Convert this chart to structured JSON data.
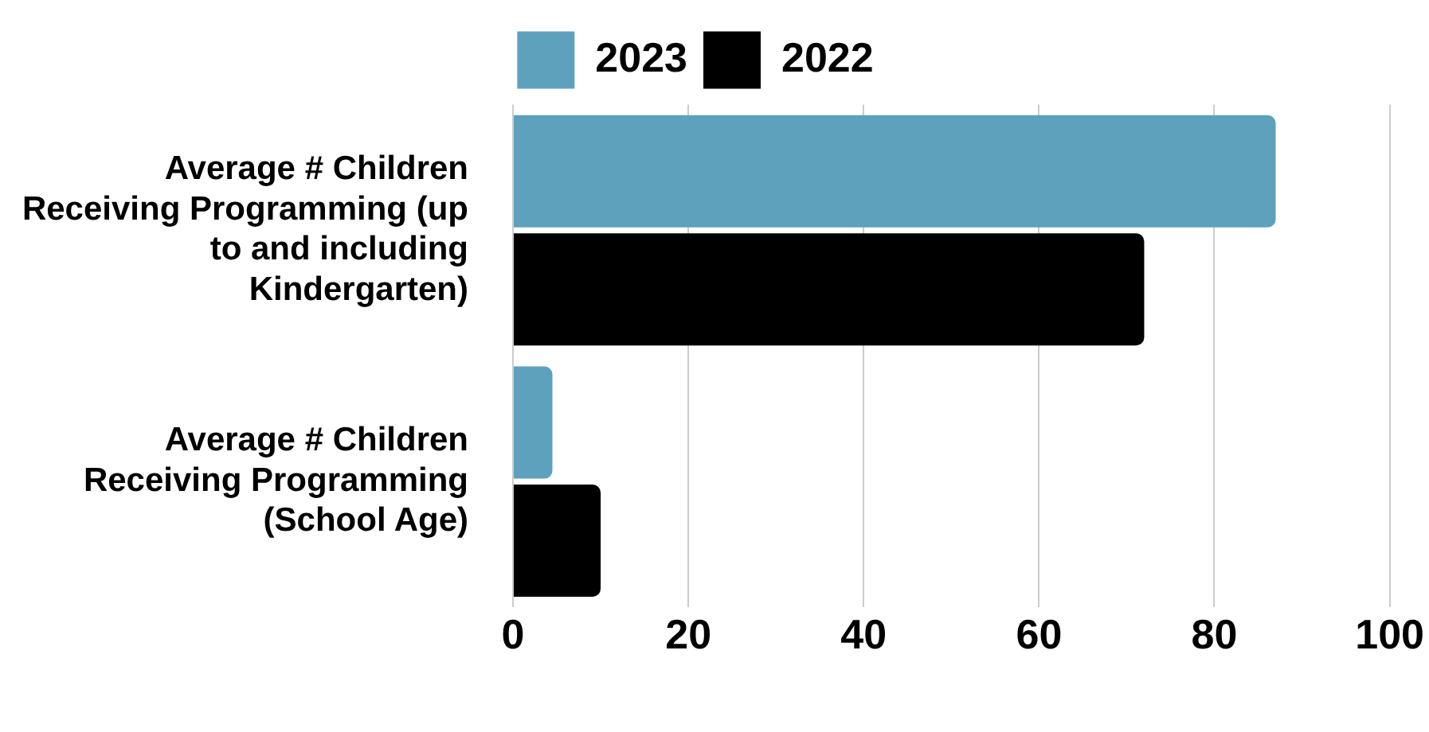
{
  "chart_data": {
    "type": "bar",
    "orientation": "horizontal",
    "categories": [
      "Average # Children Receiving Programming (up to and including Kindergarten)",
      "Average # Children Receiving Programming (School Age)"
    ],
    "series": [
      {
        "name": "2023",
        "color": "#5ea1bd",
        "values": [
          87,
          4.5
        ]
      },
      {
        "name": "2022",
        "color": "#000000",
        "values": [
          72,
          10
        ]
      }
    ],
    "xlim": [
      0,
      100
    ],
    "xticks": [
      0,
      20,
      40,
      60,
      80,
      100
    ],
    "grid": "x",
    "legend": "top"
  }
}
